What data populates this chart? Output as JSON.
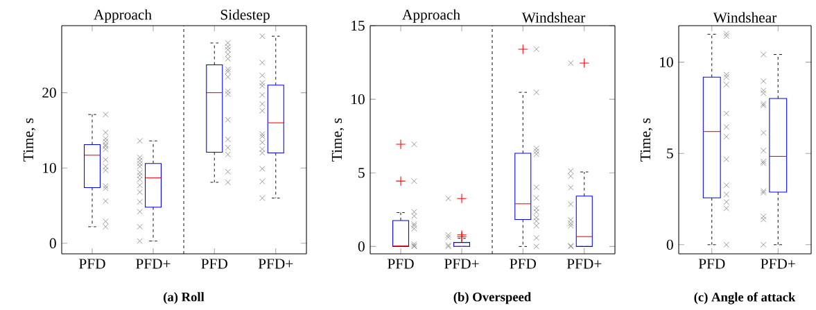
{
  "chart_data": [
    {
      "type": "box",
      "title": "Approach",
      "ylabel": "Time, s",
      "categories": [
        "PFD",
        "PFD+"
      ],
      "ylim": [
        -1.4,
        28.9
      ],
      "yticks": [
        0,
        10,
        20
      ],
      "annotations": [
        "(a) Roll"
      ],
      "series": [
        {
          "color": "#0000ff",
          "boxes": [
            {
              "low": 2.2,
              "q1": 7.4,
              "median": 11.7,
              "q3": 13.1,
              "high": 17.1
            },
            {
              "low": 0.3,
              "q1": 4.8,
              "median": 8.7,
              "q3": 10.6,
              "high": 13.6
            }
          ]
        },
        {
          "type": "scatter",
          "color": "#808080",
          "marker": "cross",
          "x": [
            "PFD",
            "PFD",
            "PFD",
            "PFD",
            "PFD",
            "PFD",
            "PFD",
            "PFD",
            "PFD",
            "PFD",
            "PFD",
            "PFD",
            "PFD",
            "PFD",
            "PFD"
          ],
          "values": [
            17.1,
            14.7,
            13.9,
            13.5,
            13.1,
            12.9,
            12.5,
            11.1,
            10.2,
            9.7,
            7.6,
            7.3,
            5.6,
            2.9,
            2.2
          ]
        },
        {
          "type": "scatter",
          "color": "#808080",
          "marker": "cross",
          "x": [
            "PFD+",
            "PFD+",
            "PFD+",
            "PFD+",
            "PFD+",
            "PFD+",
            "PFD+",
            "PFD+",
            "PFD+",
            "PFD+",
            "PFD+",
            "PFD+",
            "PFD+",
            "PFD+"
          ],
          "values": [
            13.6,
            11.4,
            11.0,
            10.6,
            10.2,
            9.4,
            9.0,
            8.5,
            7.7,
            6.8,
            5.5,
            4.2,
            2.2,
            0.3
          ]
        }
      ]
    },
    {
      "type": "box",
      "title": "Sidestep",
      "categories": [
        "PFD",
        "PFD+"
      ],
      "ylim": [
        -1.4,
        28.9
      ],
      "yticks": [
        0,
        10,
        20
      ],
      "tick_labels": "x",
      "series": [
        {
          "color": "#0000ff",
          "boxes": [
            {
              "low": 8.1,
              "q1": 12.1,
              "median": 20.0,
              "q3": 23.7,
              "high": 26.6
            },
            {
              "low": 6.0,
              "q1": 12.0,
              "median": 16.0,
              "q3": 21.0,
              "high": 27.5
            }
          ]
        },
        {
          "type": "scatter",
          "color": "#808080",
          "marker": "cross",
          "x": [
            "PFD",
            "PFD",
            "PFD",
            "PFD",
            "PFD",
            "PFD",
            "PFD",
            "PFD",
            "PFD",
            "PFD",
            "PFD",
            "PFD",
            "PFD",
            "PFD",
            "PFD",
            "PFD"
          ],
          "values": [
            26.6,
            26.1,
            25.7,
            25.1,
            24.5,
            23.1,
            22.8,
            22.1,
            20.2,
            19.8,
            16.4,
            13.8,
            12.7,
            11.8,
            9.5,
            8.1
          ]
        },
        {
          "type": "scatter",
          "color": "#808080",
          "marker": "cross",
          "x": [
            "PFD+",
            "PFD+",
            "PFD+",
            "PFD+",
            "PFD+",
            "PFD+",
            "PFD+",
            "PFD+",
            "PFD+",
            "PFD+",
            "PFD+",
            "PFD+",
            "PFD+",
            "PFD+",
            "PFD+",
            "PFD+"
          ],
          "values": [
            27.5,
            24.0,
            22.3,
            21.3,
            20.9,
            19.7,
            18.5,
            17.6,
            14.5,
            14.2,
            13.4,
            12.5,
            12.0,
            9.9,
            8.2,
            6.0
          ]
        }
      ]
    },
    {
      "type": "box",
      "title": "Approach",
      "ylabel": "Time, s",
      "categories": [
        "PFD",
        "PFD+"
      ],
      "ylim": [
        -0.5,
        15
      ],
      "yticks": [
        0,
        5,
        10,
        15
      ],
      "annotations": [
        "(b) Overspeed"
      ],
      "series": [
        {
          "color": "#0000ff",
          "boxes": [
            {
              "low": 0,
              "q1": 0,
              "median": 0.03,
              "q3": 1.76,
              "high": 2.3,
              "outliers": [
                6.94,
                4.44
              ]
            },
            {
              "low": 0,
              "q1": 0,
              "median": 0,
              "q3": 0.27,
              "high": 0.55,
              "outliers": [
                3.26,
                0.78,
                0.67
              ]
            }
          ]
        },
        {
          "type": "scatter",
          "color": "#808080",
          "marker": "cross",
          "x": [
            "PFD",
            "PFD",
            "PFD",
            "PFD",
            "PFD",
            "PFD",
            "PFD",
            "PFD",
            "PFD",
            "PFD"
          ],
          "values": [
            6.94,
            4.44,
            2.35,
            2.07,
            1.52,
            1.41,
            1.21,
            0.16,
            0.05,
            0
          ]
        },
        {
          "type": "scatter",
          "color": "#808080",
          "marker": "cross",
          "x": [
            "PFD+",
            "PFD+",
            "PFD+",
            "PFD+",
            "PFD+"
          ],
          "values": [
            3.26,
            0.78,
            0.63,
            0.08,
            0
          ]
        }
      ]
    },
    {
      "type": "box",
      "title": "Windshear",
      "categories": [
        "PFD",
        "PFD+"
      ],
      "ylim": [
        -0.5,
        15
      ],
      "yticks": [
        0,
        5,
        10,
        15
      ],
      "tick_labels": "x",
      "series": [
        {
          "color": "#0000ff",
          "boxes": [
            {
              "low": 0,
              "q1": 1.83,
              "median": 2.9,
              "q3": 6.33,
              "high": 10.47,
              "outliers": [
                13.4
              ]
            },
            {
              "low": 0,
              "q1": 0,
              "median": 0.67,
              "q3": 3.42,
              "high": 5.06,
              "outliers": [
                12.46
              ]
            }
          ]
        },
        {
          "type": "scatter",
          "color": "#808080",
          "marker": "cross",
          "x": [
            "PFD",
            "PFD",
            "PFD",
            "PFD",
            "PFD",
            "PFD",
            "PFD",
            "PFD",
            "PFD",
            "PFD",
            "PFD",
            "PFD",
            "PFD",
            "PFD"
          ],
          "values": [
            13.4,
            10.47,
            6.66,
            6.47,
            6.27,
            4.02,
            3.29,
            2.59,
            2.35,
            1.96,
            1.72,
            1.41,
            0.58,
            0
          ]
        },
        {
          "type": "scatter",
          "color": "#808080",
          "marker": "cross",
          "x": [
            "PFD+",
            "PFD+",
            "PFD+",
            "PFD+",
            "PFD+",
            "PFD+",
            "PFD+",
            "PFD+",
            "PFD+",
            "PFD+"
          ],
          "values": [
            12.46,
            5.12,
            4.78,
            4.0,
            2.87,
            1.8,
            1.57,
            1.41,
            0.05,
            0
          ]
        }
      ]
    },
    {
      "type": "box",
      "title": "Windshear",
      "ylabel": "Time, s",
      "categories": [
        "PFD",
        "PFD+"
      ],
      "ylim": [
        -0.5,
        12
      ],
      "yticks": [
        0,
        5,
        10
      ],
      "annotations": [
        "(c) Angle of attack"
      ],
      "series": [
        {
          "color": "#0000ff",
          "boxes": [
            {
              "low": 0,
              "q1": 2.57,
              "median": 6.2,
              "q3": 9.18,
              "high": 11.53
            },
            {
              "low": 0,
              "q1": 2.88,
              "median": 4.84,
              "q3": 8.01,
              "high": 10.42
            }
          ]
        },
        {
          "type": "scatter",
          "color": "#808080",
          "marker": "cross",
          "x": [
            "PFD",
            "PFD",
            "PFD",
            "PFD",
            "PFD",
            "PFD",
            "PFD",
            "PFD",
            "PFD",
            "PFD",
            "PFD",
            "PFD",
            "PFD",
            "PFD"
          ],
          "values": [
            11.56,
            11.43,
            9.32,
            9.18,
            8.77,
            7.19,
            6.45,
            5.92,
            4.68,
            3.26,
            2.75,
            2.34,
            1.99,
            0
          ]
        },
        {
          "type": "scatter",
          "color": "#808080",
          "marker": "cross",
          "x": [
            "PFD+",
            "PFD+",
            "PFD+",
            "PFD+",
            "PFD+",
            "PFD+",
            "PFD+",
            "PFD+",
            "PFD+",
            "PFD+",
            "PFD+",
            "PFD+",
            "PFD+",
            "PFD+",
            "PFD+"
          ],
          "values": [
            10.42,
            8.96,
            8.45,
            8.3,
            7.72,
            7.63,
            6.13,
            5.16,
            4.56,
            4.46,
            2.94,
            2.85,
            1.55,
            1.38,
            0
          ]
        }
      ]
    }
  ]
}
